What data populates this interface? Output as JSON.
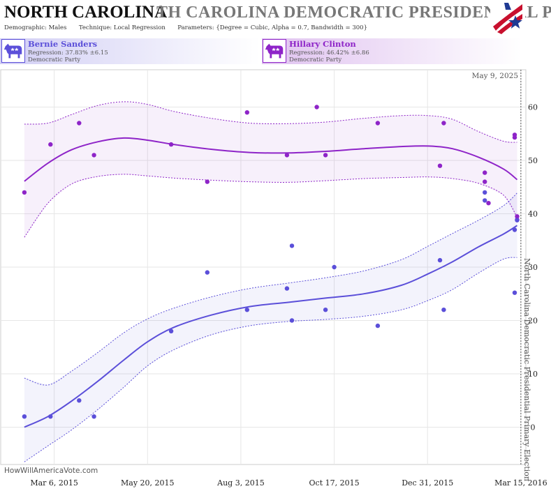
{
  "header": {
    "state": "NORTH CAROLINA",
    "race": "TH CAROLINA DEMOCRATIC PRESIDENTIAL P",
    "demographic_label": "Demographic:",
    "demographic": "Males",
    "technique_label": "Technique:",
    "technique": "Local Regression",
    "parameters_label": "Parameters:",
    "parameters": "{Degree = Cubic, Alpha = 0.7, Bandwidth = 300}"
  },
  "logo_icon": "american-flag-star-icon",
  "candidates": [
    {
      "name": "Bernie Sanders",
      "regression": "Regression: 37.83% ±6.15",
      "party": "Democratic Party",
      "color": "#5b4fd9",
      "icon": "democratic-donkey-icon"
    },
    {
      "name": "Hillary Clinton",
      "regression": "Regression: 46.42% ±6.86",
      "party": "Democratic Party",
      "color": "#8e24c8",
      "icon": "democratic-donkey-icon"
    }
  ],
  "chart_data": {
    "type": "scatter",
    "date_label": "May 9, 2025",
    "watermark": "HowWillAmericaVote.com",
    "election_marker": {
      "label": "North Carolina Democratic Presidential Primary Election",
      "x": "2016-03-15"
    },
    "x_range": [
      "2015-01-22",
      "2016-03-19"
    ],
    "ylim": [
      -7,
      67
    ],
    "y_ticks": [
      0,
      10,
      20,
      30,
      40,
      50,
      60
    ],
    "x_ticks": [
      {
        "label": "Mar 6, 2015",
        "x": "2015-03-06"
      },
      {
        "label": "May 20, 2015",
        "x": "2015-05-20"
      },
      {
        "label": "Aug 3, 2015",
        "x": "2015-08-03"
      },
      {
        "label": "Oct 17, 2015",
        "x": "2015-10-17"
      },
      {
        "label": "Dec 31, 2015",
        "x": "2015-12-31"
      },
      {
        "label": "Mar 15, 2016",
        "x": "2016-03-15"
      }
    ],
    "series": [
      {
        "name": "Hillary Clinton",
        "color": "#8e24c8",
        "points": [
          {
            "x": "2015-02-10",
            "y": 44
          },
          {
            "x": "2015-03-03",
            "y": 53
          },
          {
            "x": "2015-03-26",
            "y": 57
          },
          {
            "x": "2015-04-07",
            "y": 51
          },
          {
            "x": "2015-06-08",
            "y": 53
          },
          {
            "x": "2015-07-07",
            "y": 46
          },
          {
            "x": "2015-08-08",
            "y": 59
          },
          {
            "x": "2015-09-09",
            "y": 51
          },
          {
            "x": "2015-10-03",
            "y": 60
          },
          {
            "x": "2015-10-10",
            "y": 51
          },
          {
            "x": "2015-11-21",
            "y": 57
          },
          {
            "x": "2016-01-10",
            "y": 49
          },
          {
            "x": "2016-01-13",
            "y": 57
          },
          {
            "x": "2016-02-15",
            "y": 47.7
          },
          {
            "x": "2016-02-15",
            "y": 46
          },
          {
            "x": "2016-02-18",
            "y": 42
          },
          {
            "x": "2016-03-10",
            "y": 54.8
          },
          {
            "x": "2016-03-10",
            "y": 54.3
          },
          {
            "x": "2016-03-12",
            "y": 39.5
          },
          {
            "x": "2016-03-12",
            "y": 38.9
          }
        ],
        "trend": [
          {
            "x": "2015-02-10",
            "y": 46.1
          },
          {
            "x": "2015-03-01",
            "y": 49.5
          },
          {
            "x": "2015-03-20",
            "y": 52.0
          },
          {
            "x": "2015-04-10",
            "y": 53.5
          },
          {
            "x": "2015-05-01",
            "y": 54.2
          },
          {
            "x": "2015-05-20",
            "y": 53.8
          },
          {
            "x": "2015-06-10",
            "y": 53.0
          },
          {
            "x": "2015-07-10",
            "y": 52.1
          },
          {
            "x": "2015-08-10",
            "y": 51.5
          },
          {
            "x": "2015-09-10",
            "y": 51.4
          },
          {
            "x": "2015-10-10",
            "y": 51.7
          },
          {
            "x": "2015-11-10",
            "y": 52.2
          },
          {
            "x": "2015-12-10",
            "y": 52.6
          },
          {
            "x": "2016-01-01",
            "y": 52.7
          },
          {
            "x": "2016-01-20",
            "y": 52.2
          },
          {
            "x": "2016-02-10",
            "y": 50.6
          },
          {
            "x": "2016-03-01",
            "y": 48.4
          },
          {
            "x": "2016-03-12",
            "y": 46.4
          }
        ],
        "upper": [
          {
            "x": "2015-02-10",
            "y": 56.8
          },
          {
            "x": "2015-03-01",
            "y": 57.0
          },
          {
            "x": "2015-03-20",
            "y": 58.6
          },
          {
            "x": "2015-04-10",
            "y": 60.3
          },
          {
            "x": "2015-05-01",
            "y": 61.0
          },
          {
            "x": "2015-05-20",
            "y": 60.5
          },
          {
            "x": "2015-06-10",
            "y": 59.2
          },
          {
            "x": "2015-07-10",
            "y": 57.9
          },
          {
            "x": "2015-08-10",
            "y": 57.0
          },
          {
            "x": "2015-09-10",
            "y": 56.9
          },
          {
            "x": "2015-10-10",
            "y": 57.2
          },
          {
            "x": "2015-11-10",
            "y": 57.9
          },
          {
            "x": "2015-12-10",
            "y": 58.4
          },
          {
            "x": "2016-01-01",
            "y": 58.4
          },
          {
            "x": "2016-01-20",
            "y": 57.7
          },
          {
            "x": "2016-02-10",
            "y": 55.4
          },
          {
            "x": "2016-03-01",
            "y": 53.6
          },
          {
            "x": "2016-03-12",
            "y": 53.4
          }
        ],
        "lower": [
          {
            "x": "2015-02-10",
            "y": 35.6
          },
          {
            "x": "2015-03-01",
            "y": 42.0
          },
          {
            "x": "2015-03-20",
            "y": 45.6
          },
          {
            "x": "2015-04-10",
            "y": 47.0
          },
          {
            "x": "2015-05-01",
            "y": 47.4
          },
          {
            "x": "2015-05-20",
            "y": 47.1
          },
          {
            "x": "2015-06-10",
            "y": 46.7
          },
          {
            "x": "2015-07-10",
            "y": 46.3
          },
          {
            "x": "2015-08-10",
            "y": 46.0
          },
          {
            "x": "2015-09-10",
            "y": 45.9
          },
          {
            "x": "2015-10-10",
            "y": 46.2
          },
          {
            "x": "2015-11-10",
            "y": 46.6
          },
          {
            "x": "2015-12-10",
            "y": 46.8
          },
          {
            "x": "2016-01-01",
            "y": 46.9
          },
          {
            "x": "2016-01-20",
            "y": 46.6
          },
          {
            "x": "2016-02-10",
            "y": 45.7
          },
          {
            "x": "2016-03-01",
            "y": 43.5
          },
          {
            "x": "2016-03-12",
            "y": 39.3
          }
        ]
      },
      {
        "name": "Bernie Sanders",
        "color": "#5b4fd9",
        "points": [
          {
            "x": "2015-02-10",
            "y": 2
          },
          {
            "x": "2015-03-03",
            "y": 2
          },
          {
            "x": "2015-03-26",
            "y": 5
          },
          {
            "x": "2015-04-07",
            "y": 2
          },
          {
            "x": "2015-06-08",
            "y": 18
          },
          {
            "x": "2015-07-07",
            "y": 29
          },
          {
            "x": "2015-08-08",
            "y": 22
          },
          {
            "x": "2015-09-09",
            "y": 26
          },
          {
            "x": "2015-09-13",
            "y": 34
          },
          {
            "x": "2015-09-13",
            "y": 20
          },
          {
            "x": "2015-10-10",
            "y": 22
          },
          {
            "x": "2015-10-17",
            "y": 30
          },
          {
            "x": "2015-11-21",
            "y": 19
          },
          {
            "x": "2016-01-10",
            "y": 31.3
          },
          {
            "x": "2016-01-13",
            "y": 22
          },
          {
            "x": "2016-02-15",
            "y": 44
          },
          {
            "x": "2016-02-15",
            "y": 42.5
          },
          {
            "x": "2016-03-10",
            "y": 37
          },
          {
            "x": "2016-03-10",
            "y": 25.2
          },
          {
            "x": "2016-03-12",
            "y": 38.8
          }
        ],
        "trend": [
          {
            "x": "2015-02-10",
            "y": 0.0
          },
          {
            "x": "2015-03-01",
            "y": 2.0
          },
          {
            "x": "2015-03-20",
            "y": 4.9
          },
          {
            "x": "2015-04-10",
            "y": 8.6
          },
          {
            "x": "2015-05-01",
            "y": 12.6
          },
          {
            "x": "2015-05-20",
            "y": 16.0
          },
          {
            "x": "2015-06-10",
            "y": 18.7
          },
          {
            "x": "2015-07-10",
            "y": 21.0
          },
          {
            "x": "2015-08-10",
            "y": 22.6
          },
          {
            "x": "2015-09-10",
            "y": 23.4
          },
          {
            "x": "2015-10-10",
            "y": 24.2
          },
          {
            "x": "2015-11-10",
            "y": 25.0
          },
          {
            "x": "2015-12-10",
            "y": 26.6
          },
          {
            "x": "2016-01-01",
            "y": 28.8
          },
          {
            "x": "2016-01-20",
            "y": 31.0
          },
          {
            "x": "2016-02-10",
            "y": 33.8
          },
          {
            "x": "2016-03-01",
            "y": 36.2
          },
          {
            "x": "2016-03-12",
            "y": 37.8
          }
        ],
        "upper": [
          {
            "x": "2015-02-10",
            "y": 9.2
          },
          {
            "x": "2015-03-01",
            "y": 7.9
          },
          {
            "x": "2015-03-20",
            "y": 10.5
          },
          {
            "x": "2015-04-10",
            "y": 14.0
          },
          {
            "x": "2015-05-01",
            "y": 17.7
          },
          {
            "x": "2015-05-20",
            "y": 20.3
          },
          {
            "x": "2015-06-10",
            "y": 22.3
          },
          {
            "x": "2015-07-10",
            "y": 24.4
          },
          {
            "x": "2015-08-10",
            "y": 26.0
          },
          {
            "x": "2015-09-10",
            "y": 27.0
          },
          {
            "x": "2015-10-10",
            "y": 28.0
          },
          {
            "x": "2015-11-10",
            "y": 29.3
          },
          {
            "x": "2015-12-10",
            "y": 31.4
          },
          {
            "x": "2016-01-01",
            "y": 34.0
          },
          {
            "x": "2016-01-20",
            "y": 36.3
          },
          {
            "x": "2016-02-10",
            "y": 38.8
          },
          {
            "x": "2016-03-01",
            "y": 41.5
          },
          {
            "x": "2016-03-12",
            "y": 43.9
          }
        ],
        "lower": [
          {
            "x": "2015-02-10",
            "y": -6.5
          },
          {
            "x": "2015-03-01",
            "y": -3.5
          },
          {
            "x": "2015-03-20",
            "y": -0.5
          },
          {
            "x": "2015-04-10",
            "y": 3.3
          },
          {
            "x": "2015-05-01",
            "y": 7.5
          },
          {
            "x": "2015-05-20",
            "y": 11.5
          },
          {
            "x": "2015-06-10",
            "y": 14.5
          },
          {
            "x": "2015-07-10",
            "y": 17.3
          },
          {
            "x": "2015-08-10",
            "y": 19.0
          },
          {
            "x": "2015-09-10",
            "y": 19.8
          },
          {
            "x": "2015-10-10",
            "y": 20.2
          },
          {
            "x": "2015-11-10",
            "y": 20.8
          },
          {
            "x": "2015-12-10",
            "y": 22.0
          },
          {
            "x": "2016-01-01",
            "y": 23.8
          },
          {
            "x": "2016-01-20",
            "y": 25.8
          },
          {
            "x": "2016-02-10",
            "y": 28.9
          },
          {
            "x": "2016-03-01",
            "y": 31.5
          },
          {
            "x": "2016-03-12",
            "y": 31.8
          }
        ]
      }
    ]
  }
}
